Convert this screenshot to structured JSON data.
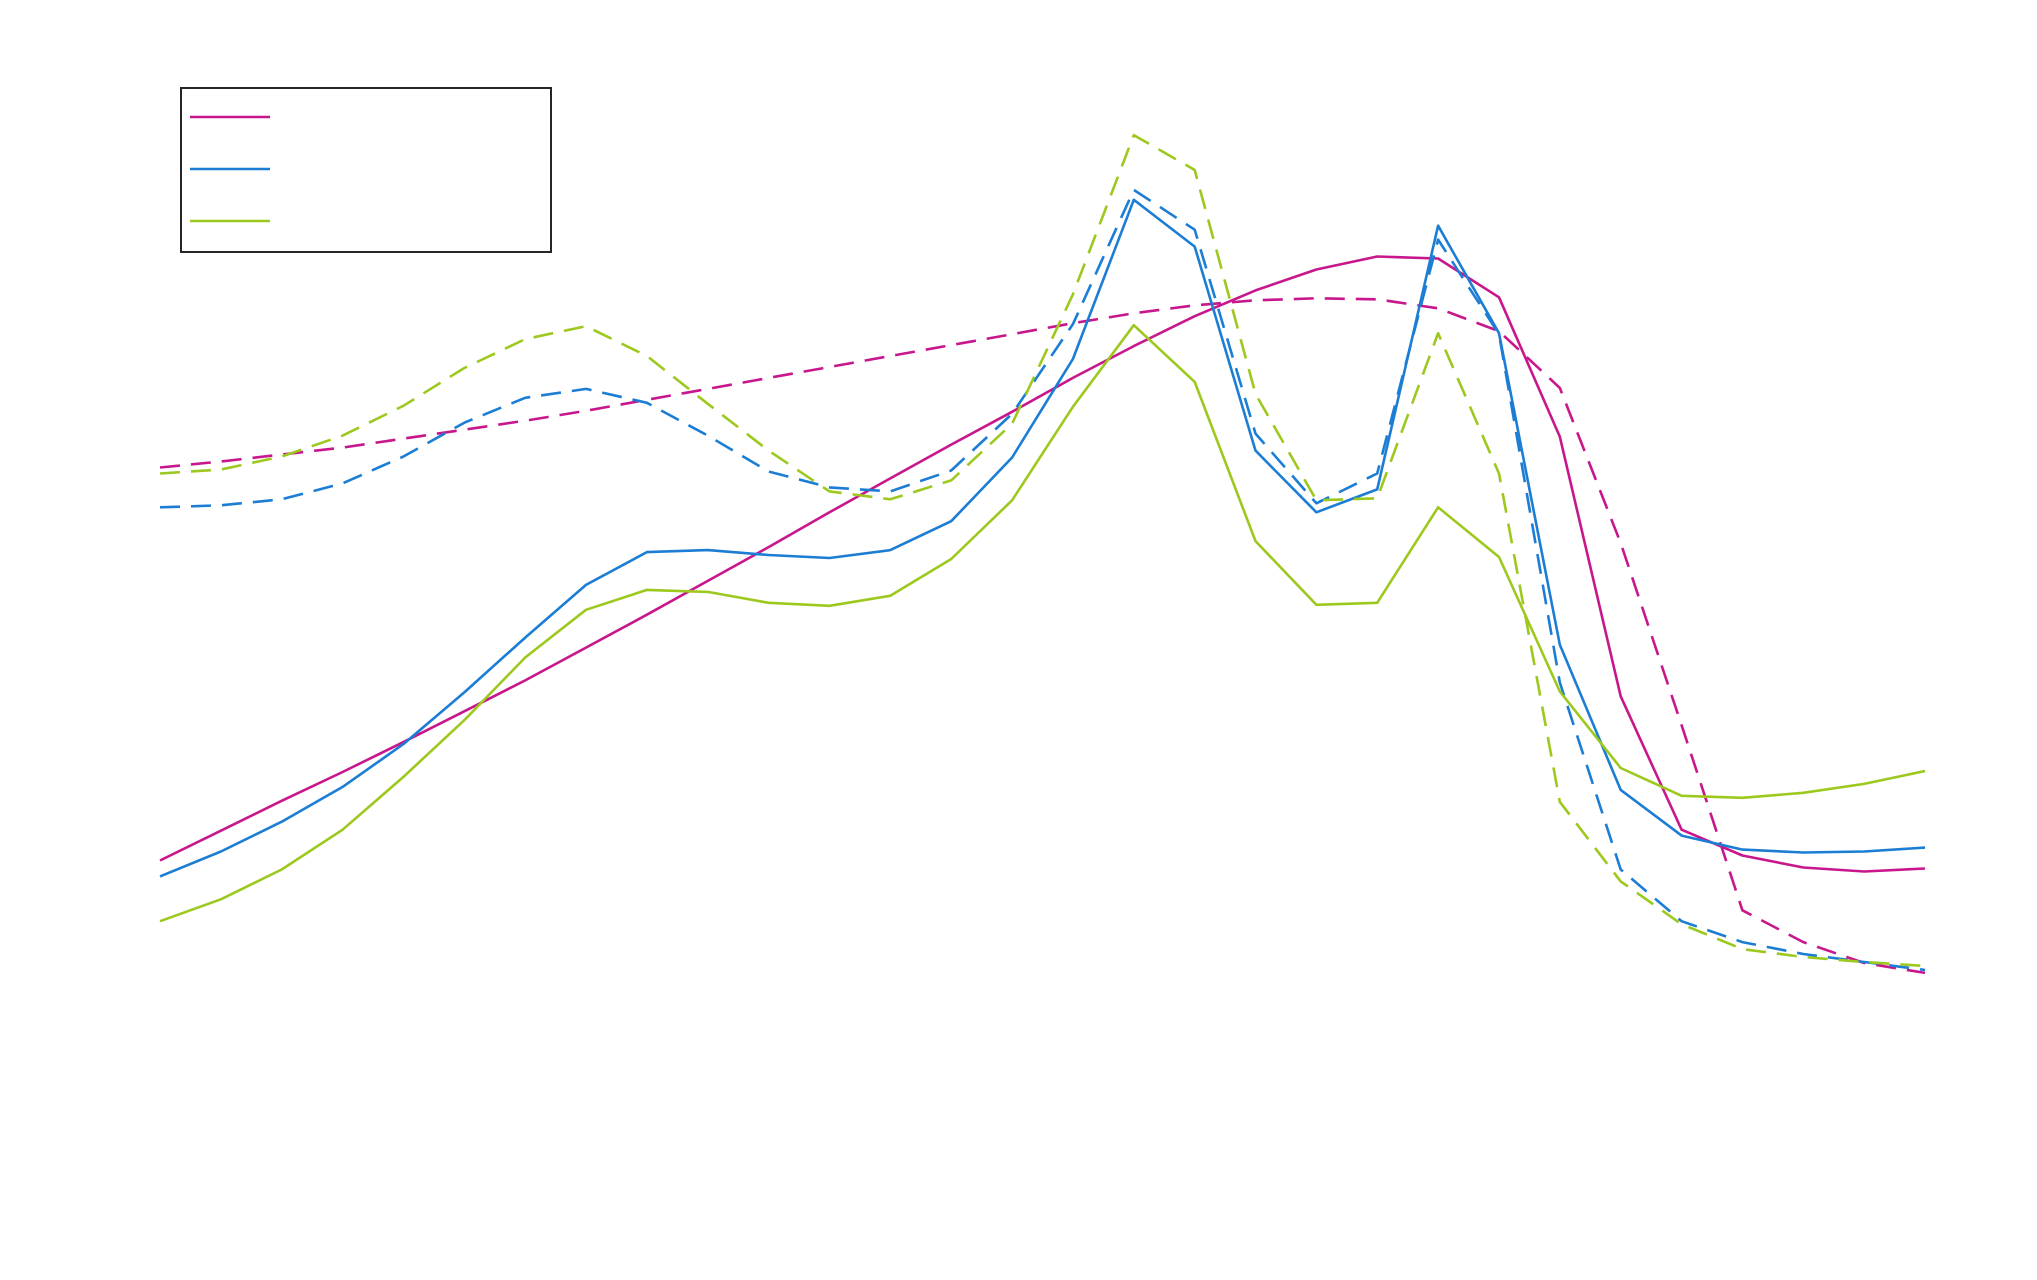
{
  "chart_data": {
    "type": "line",
    "title": "",
    "xlabel": "",
    "ylabel": "",
    "grid": false,
    "axes_visible": false,
    "legend": {
      "placement": "top-left",
      "labels": [
        "",
        "",
        ""
      ]
    },
    "x": [
      0,
      1,
      2,
      3,
      4,
      5,
      6,
      7,
      8,
      9,
      10,
      11,
      12,
      13,
      14,
      15,
      16,
      17,
      18,
      19,
      20,
      21,
      22,
      23,
      24,
      25,
      26,
      27,
      28,
      29
    ],
    "xlim": [
      0,
      29
    ],
    "ylim": [
      0,
      1
    ],
    "series": [
      {
        "color": "#c8178c",
        "style": "solid",
        "values": [
          0.301,
          0.331,
          0.361,
          0.39,
          0.42,
          0.451,
          0.482,
          0.515,
          0.548,
          0.582,
          0.616,
          0.651,
          0.685,
          0.719,
          0.752,
          0.786,
          0.818,
          0.848,
          0.874,
          0.895,
          0.908,
          0.906,
          0.867,
          0.727,
          0.466,
          0.332,
          0.306,
          0.294,
          0.29,
          0.293
        ]
      },
      {
        "color": "#c8178c",
        "style": "dashed",
        "values": [
          0.696,
          0.702,
          0.709,
          0.716,
          0.725,
          0.734,
          0.743,
          0.753,
          0.764,
          0.775,
          0.786,
          0.797,
          0.808,
          0.819,
          0.83,
          0.841,
          0.851,
          0.859,
          0.864,
          0.866,
          0.865,
          0.856,
          0.833,
          0.776,
          0.62,
          0.437,
          0.251,
          0.219,
          0.198,
          0.188
        ]
      },
      {
        "color": "#1c7dd4",
        "style": "solid",
        "values": [
          0.285,
          0.31,
          0.34,
          0.375,
          0.418,
          0.47,
          0.525,
          0.578,
          0.611,
          0.613,
          0.608,
          0.605,
          0.613,
          0.642,
          0.706,
          0.805,
          0.965,
          0.918,
          0.713,
          0.651,
          0.674,
          0.939,
          0.831,
          0.518,
          0.372,
          0.326,
          0.312,
          0.309,
          0.31,
          0.314
        ]
      },
      {
        "color": "#1c7dd4",
        "style": "dashed",
        "values": [
          0.656,
          0.658,
          0.664,
          0.68,
          0.707,
          0.741,
          0.766,
          0.775,
          0.761,
          0.728,
          0.692,
          0.676,
          0.672,
          0.693,
          0.75,
          0.84,
          0.975,
          0.935,
          0.73,
          0.66,
          0.69,
          0.925,
          0.83,
          0.48,
          0.292,
          0.24,
          0.219,
          0.207,
          0.199,
          0.191
        ]
      },
      {
        "color": "#9dc81e",
        "style": "solid",
        "values": [
          0.24,
          0.262,
          0.292,
          0.332,
          0.385,
          0.442,
          0.505,
          0.553,
          0.573,
          0.571,
          0.56,
          0.557,
          0.567,
          0.604,
          0.663,
          0.757,
          0.839,
          0.782,
          0.622,
          0.558,
          0.56,
          0.656,
          0.606,
          0.471,
          0.394,
          0.366,
          0.364,
          0.369,
          0.378,
          0.391
        ]
      },
      {
        "color": "#9dc81e",
        "style": "dashed",
        "values": [
          0.69,
          0.694,
          0.707,
          0.728,
          0.758,
          0.796,
          0.825,
          0.838,
          0.808,
          0.76,
          0.713,
          0.672,
          0.664,
          0.683,
          0.74,
          0.87,
          1.03,
          0.995,
          0.77,
          0.663,
          0.665,
          0.831,
          0.69,
          0.36,
          0.28,
          0.237,
          0.212,
          0.204,
          0.199,
          0.195
        ]
      }
    ]
  }
}
